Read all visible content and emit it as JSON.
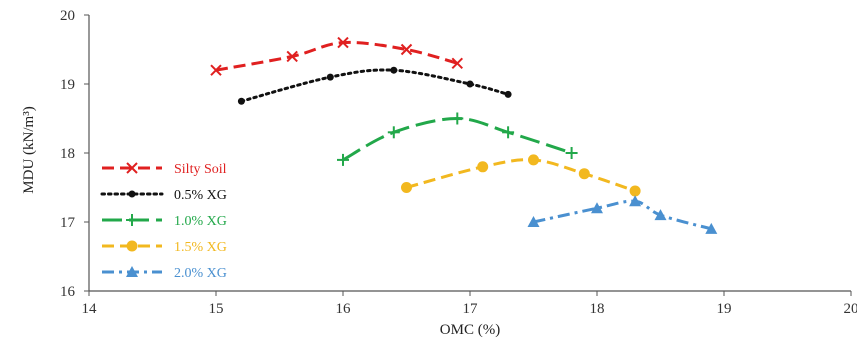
{
  "chart_data": {
    "type": "line",
    "title": "",
    "xlabel": "OMC (%)",
    "ylabel": "MDU (kN/m³)",
    "xlim": [
      14,
      20
    ],
    "ylim": [
      16,
      20
    ],
    "xticks": [
      "14",
      "15",
      "16",
      "17",
      "18",
      "19",
      "20"
    ],
    "yticks": [
      "16",
      "17",
      "18",
      "19",
      "20"
    ],
    "grid": false,
    "legend_position": "left",
    "series": [
      {
        "name": "Silty Soil",
        "color": "#e02020",
        "marker": "x",
        "dash": "dash",
        "x": [
          15.0,
          15.6,
          16.0,
          16.5,
          16.9
        ],
        "y": [
          19.2,
          19.4,
          19.6,
          19.5,
          19.3
        ]
      },
      {
        "name": "0.5% XG",
        "color": "#111111",
        "marker": "circle-small",
        "dash": "dot",
        "x": [
          15.2,
          15.9,
          16.4,
          17.0,
          17.3
        ],
        "y": [
          18.75,
          19.1,
          19.2,
          19.0,
          18.85
        ]
      },
      {
        "name": "1.0% XG",
        "color": "#22a84a",
        "marker": "plus",
        "dash": "longdash",
        "x": [
          16.0,
          16.4,
          16.9,
          17.3,
          17.8
        ],
        "y": [
          17.9,
          18.3,
          18.5,
          18.3,
          18.0
        ]
      },
      {
        "name": "1.5% XG",
        "color": "#f2b81f",
        "marker": "circle",
        "dash": "dash",
        "x": [
          16.5,
          17.1,
          17.5,
          17.9,
          18.3
        ],
        "y": [
          17.5,
          17.8,
          17.9,
          17.7,
          17.45
        ]
      },
      {
        "name": "2.0% XG",
        "color": "#4a90d0",
        "marker": "triangle",
        "dash": "dashdot",
        "x": [
          17.5,
          18.0,
          18.3,
          18.5,
          18.9
        ],
        "y": [
          17.0,
          17.2,
          17.3,
          17.1,
          16.9
        ]
      }
    ]
  }
}
